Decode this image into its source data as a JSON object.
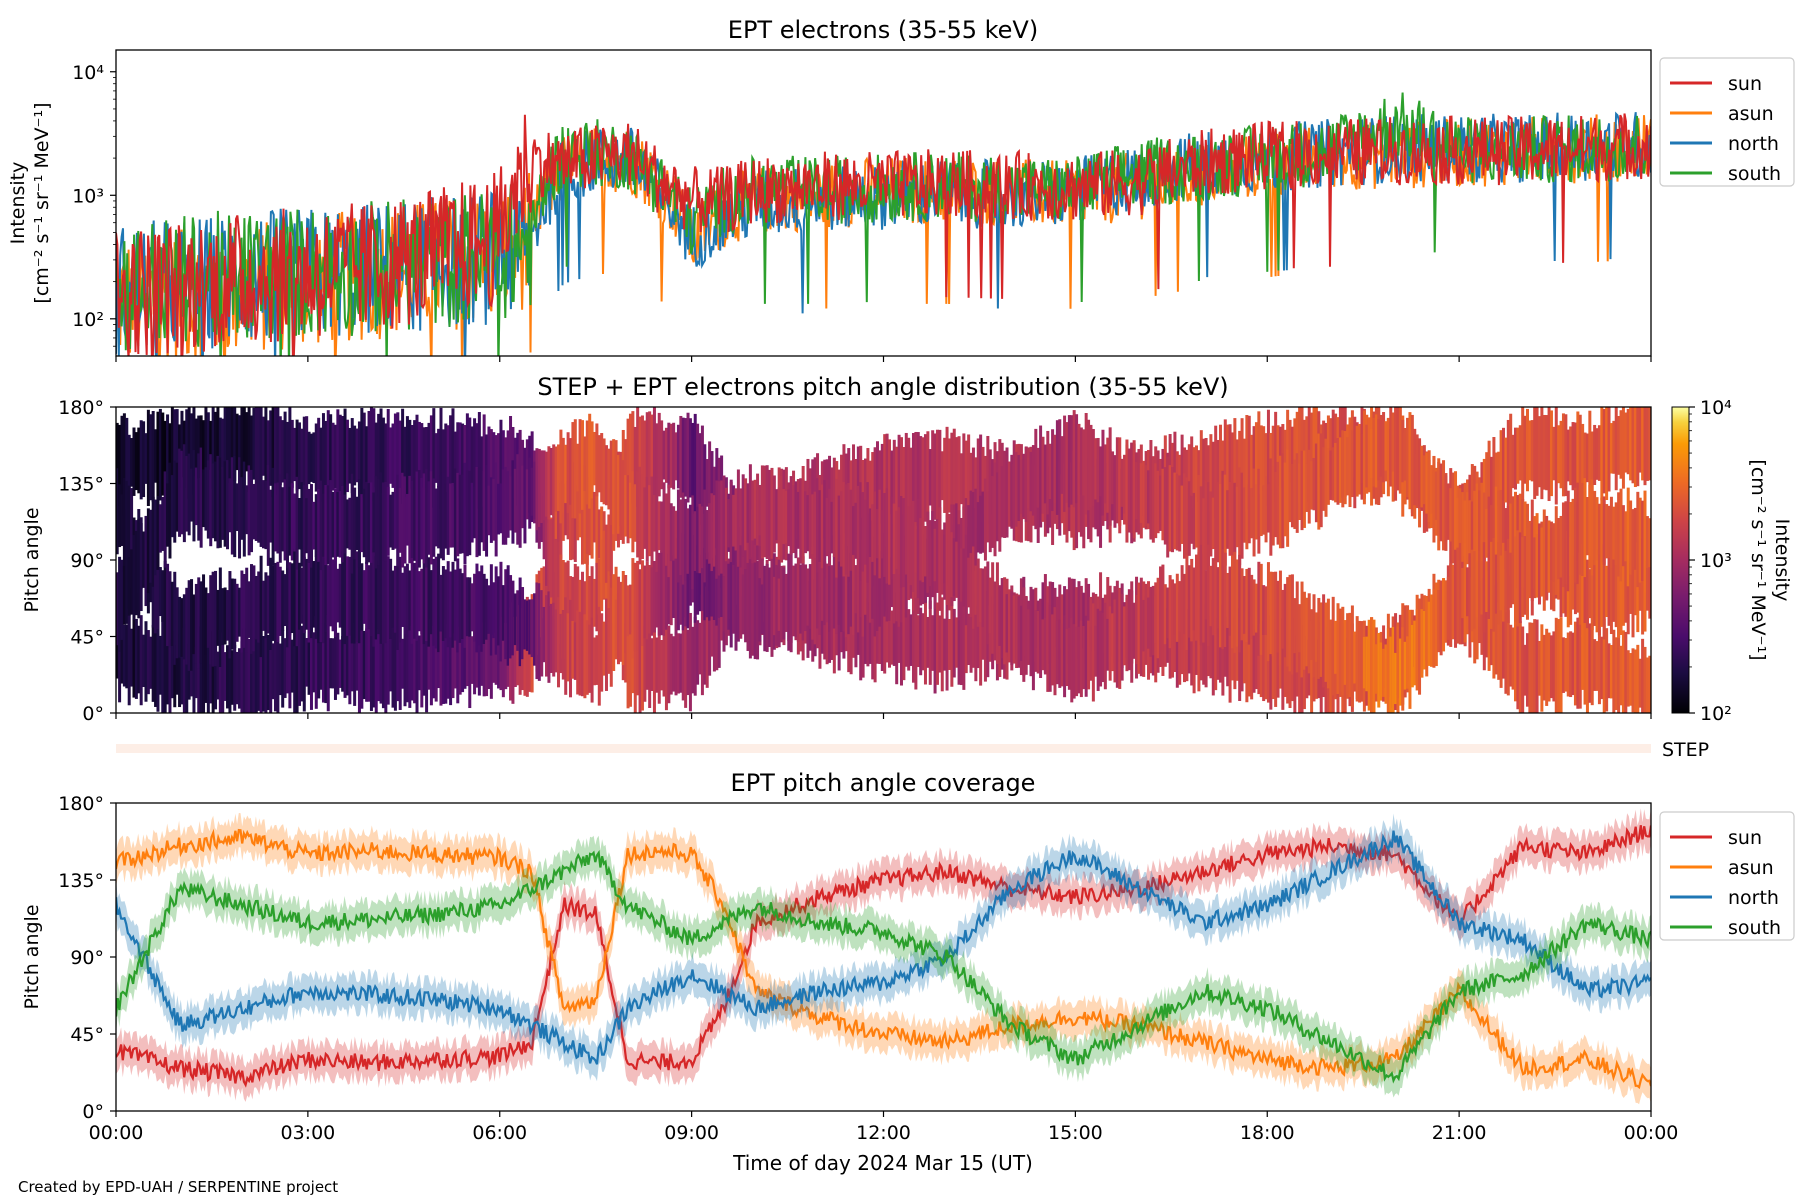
{
  "footer_text": "Created by EPD-UAH / SERPENTINE project",
  "xlabel": "Time of day 2024 Mar 15 (UT)",
  "x_ticks": [
    "00:00",
    "03:00",
    "06:00",
    "09:00",
    "12:00",
    "15:00",
    "18:00",
    "21:00",
    "00:00"
  ],
  "chart_data": [
    {
      "type": "line",
      "title": "EPT electrons (35-55 keV)",
      "ylabel_line1": "Intensity",
      "ylabel_line2": "[cm⁻² s⁻¹ sr⁻¹ MeV⁻¹]",
      "yscale": "log",
      "ylim": [
        50,
        15000
      ],
      "y_ticks": [
        {
          "value": 100,
          "label": "10²"
        },
        {
          "value": 1000,
          "label": "10³"
        },
        {
          "value": 10000,
          "label": "10⁴"
        }
      ],
      "x_hours": [
        0,
        1,
        2,
        3,
        4,
        5,
        6,
        6.5,
        7,
        7.5,
        8,
        8.5,
        9,
        9.5,
        10,
        11,
        12,
        13,
        14,
        15,
        16,
        17,
        18,
        19,
        20,
        21,
        22,
        23,
        24
      ],
      "legend_position": "outside-right",
      "series": [
        {
          "name": "sun",
          "color": "#d62728",
          "values": [
            160,
            180,
            210,
            230,
            260,
            330,
            450,
            1900,
            1800,
            2000,
            2200,
            1300,
            900,
            900,
            1100,
            1200,
            1200,
            1250,
            1200,
            1150,
            1300,
            1800,
            2100,
            2200,
            2300,
            2300,
            2300,
            2400,
            2600
          ]
        },
        {
          "name": "asun",
          "color": "#ff7f0e",
          "values": [
            140,
            150,
            170,
            200,
            230,
            270,
            320,
            450,
            1700,
            1900,
            2000,
            1200,
            400,
            700,
            900,
            1000,
            1100,
            1100,
            1050,
            1000,
            1200,
            1500,
            1800,
            2100,
            2100,
            2200,
            2300,
            2400,
            2500
          ]
        },
        {
          "name": "north",
          "color": "#1f77b4",
          "values": [
            170,
            190,
            210,
            230,
            250,
            280,
            320,
            400,
            1600,
            1900,
            2000,
            1000,
            450,
            650,
            850,
            950,
            1000,
            1050,
            1000,
            1050,
            1400,
            1800,
            2000,
            2200,
            2400,
            2400,
            2400,
            2500,
            2600
          ]
        },
        {
          "name": "south",
          "color": "#2ca02c",
          "values": [
            180,
            200,
            220,
            240,
            260,
            290,
            330,
            420,
            2200,
            2200,
            2100,
            1200,
            600,
            900,
            1100,
            1100,
            1150,
            1200,
            1100,
            1100,
            1500,
            1700,
            2000,
            2300,
            3800,
            2300,
            2300,
            2400,
            2600
          ]
        }
      ]
    },
    {
      "type": "heatmap",
      "title": "STEP + EPT electrons pitch angle distribution (35-55 keV)",
      "ylabel": "Pitch angle",
      "ylim": [
        0,
        180
      ],
      "y_ticks": [
        "0°",
        "45°",
        "90°",
        "135°",
        "180°"
      ],
      "colormap": "inferno",
      "colorbar_label_line1": "Intensity",
      "colorbar_label_line2": "[cm⁻² s⁻¹ sr⁻¹ MeV⁻¹]",
      "colorbar_scale": "log",
      "colorbar_range": [
        100,
        10000
      ],
      "colorbar_ticks": [
        {
          "value": 100,
          "label": "10²"
        },
        {
          "value": 1000,
          "label": "10³"
        },
        {
          "value": 10000,
          "label": "10⁴"
        }
      ]
    },
    {
      "type": "bar",
      "label": "STEP",
      "color": "#fdeee6"
    },
    {
      "type": "line",
      "title": "EPT pitch angle coverage",
      "ylabel": "Pitch angle",
      "ylim": [
        0,
        180
      ],
      "y_ticks": [
        "0°",
        "45°",
        "90°",
        "135°",
        "180°"
      ],
      "legend_position": "outside-right",
      "band_halfwidth_deg": 10,
      "x_hours": [
        0,
        1,
        2,
        3,
        4,
        5,
        6,
        6.5,
        7,
        7.5,
        8,
        8.5,
        9,
        9.5,
        10,
        11,
        12,
        13,
        14,
        15,
        16,
        17,
        18,
        19,
        20,
        21,
        22,
        23,
        24
      ],
      "series": [
        {
          "name": "sun",
          "color": "#d62728",
          "values": [
            35,
            25,
            20,
            30,
            28,
            30,
            32,
            40,
            120,
            115,
            30,
            28,
            30,
            60,
            110,
            125,
            135,
            140,
            130,
            125,
            130,
            140,
            150,
            155,
            150,
            110,
            155,
            150,
            165
          ]
        },
        {
          "name": "asun",
          "color": "#ff7f0e",
          "values": [
            145,
            155,
            160,
            150,
            152,
            150,
            148,
            140,
            60,
            65,
            150,
            152,
            150,
            120,
            70,
            55,
            45,
            40,
            50,
            55,
            50,
            40,
            30,
            25,
            30,
            70,
            25,
            30,
            15
          ]
        },
        {
          "name": "north",
          "color": "#1f77b4",
          "values": [
            120,
            50,
            60,
            70,
            68,
            65,
            60,
            50,
            40,
            30,
            60,
            70,
            80,
            70,
            60,
            70,
            75,
            90,
            130,
            150,
            130,
            110,
            120,
            140,
            160,
            110,
            100,
            70,
            75
          ]
        },
        {
          "name": "south",
          "color": "#2ca02c",
          "values": [
            60,
            130,
            120,
            110,
            112,
            115,
            120,
            130,
            140,
            150,
            120,
            110,
            100,
            110,
            120,
            110,
            105,
            90,
            50,
            30,
            50,
            70,
            60,
            40,
            20,
            70,
            80,
            110,
            100
          ]
        }
      ]
    }
  ]
}
